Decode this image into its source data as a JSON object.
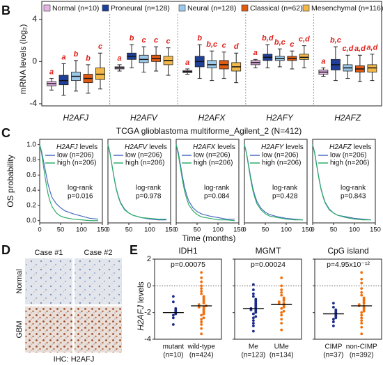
{
  "labels": [
    "B",
    "C",
    "D",
    "E"
  ],
  "ihc": {
    "columns": [
      "Case #1",
      "Case #2"
    ],
    "rows": [
      "Normal",
      "GBM"
    ],
    "caption": "IHC: H2AFJ"
  },
  "chart_data": [
    {
      "type": "box",
      "ylabel": "mRNA levels (log₂)",
      "ylim": [
        -4.2,
        5.7
      ],
      "yticks": [
        4,
        0,
        -4
      ],
      "categories": [
        "H2AFJ",
        "H2AFV",
        "H2AFX",
        "H2AFY",
        "H2AFZ"
      ],
      "series": [
        {
          "name": "Normal (n=10)",
          "color": "#e6b3e6",
          "values": [
            {
              "min": -2.7,
              "q1": -2.3,
              "median": -2.1,
              "q3": -1.9,
              "max": -1.6
            },
            {
              "min": -0.9,
              "q1": -0.7,
              "median": -0.6,
              "q3": -0.5,
              "max": -0.3
            },
            {
              "min": -1.2,
              "q1": -1.05,
              "median": -0.95,
              "q3": -0.85,
              "max": -0.7
            },
            {
              "min": -0.6,
              "q1": -0.3,
              "median": -0.1,
              "q3": 0.1,
              "max": 0.2
            },
            {
              "min": -1.4,
              "q1": -1.2,
              "median": -1.0,
              "q3": -0.8,
              "max": -0.6
            }
          ],
          "letters": [
            "a",
            "a",
            "a",
            "a",
            "a"
          ]
        },
        {
          "name": "Proneural (n=128)",
          "color": "#1f3f99",
          "values": [
            {
              "min": -3.2,
              "q1": -2.2,
              "median": -1.8,
              "q3": -1.3,
              "max": -0.2
            },
            {
              "min": -0.6,
              "q1": 0.2,
              "median": 0.5,
              "q3": 0.8,
              "max": 1.6
            },
            {
              "min": -1.6,
              "q1": -0.5,
              "median": 0.0,
              "q3": 0.5,
              "max": 1.6
            },
            {
              "min": -0.6,
              "q1": 0.1,
              "median": 0.4,
              "q3": 0.7,
              "max": 1.6
            },
            {
              "min": -1.8,
              "q1": -0.8,
              "median": -0.3,
              "q3": 0.2,
              "max": 1.4
            }
          ],
          "letters": [
            "a",
            "b",
            "b",
            "b,d",
            "b,c"
          ]
        },
        {
          "name": "Neural (n=128)",
          "color": "#9cc8ea",
          "values": [
            {
              "min": -2.8,
              "q1": -1.8,
              "median": -1.4,
              "q3": -1.0,
              "max": 0.1
            },
            {
              "min": -1.0,
              "q1": -0.1,
              "median": 0.2,
              "q3": 0.6,
              "max": 1.4
            },
            {
              "min": -1.8,
              "q1": -0.6,
              "median": -0.3,
              "q3": 0.1,
              "max": 1.0
            },
            {
              "min": -0.5,
              "q1": 0.1,
              "median": 0.3,
              "q3": 0.5,
              "max": 1.2
            },
            {
              "min": -1.6,
              "q1": -0.9,
              "median": -0.6,
              "q3": -0.3,
              "max": 0.6
            }
          ],
          "letters": [
            "b",
            "c",
            "b,c",
            "b,c",
            "c,d"
          ]
        },
        {
          "name": "Classical (n=62)",
          "color": "#e05a14",
          "values": [
            {
              "min": -3.0,
              "q1": -2.0,
              "median": -1.6,
              "q3": -1.2,
              "max": -0.3
            },
            {
              "min": -0.9,
              "q1": 0.0,
              "median": 0.3,
              "q3": 0.6,
              "max": 1.4
            },
            {
              "min": -1.6,
              "q1": -0.7,
              "median": -0.3,
              "q3": 0.1,
              "max": 0.9
            },
            {
              "min": -0.7,
              "q1": 0.1,
              "median": 0.3,
              "q3": 0.5,
              "max": 1.0
            },
            {
              "min": -1.9,
              "q1": -1.0,
              "median": -0.7,
              "q3": -0.4,
              "max": 0.6
            }
          ],
          "letters": [
            "b",
            "c",
            "c",
            "c",
            "a,d"
          ]
        },
        {
          "name": "Mesenchymal (n=116)",
          "color": "#f2b84a",
          "values": [
            {
              "min": -2.6,
              "q1": -1.7,
              "median": -1.2,
              "q3": -0.6,
              "max": 0.8
            },
            {
              "min": -1.3,
              "q1": -0.3,
              "median": 0.1,
              "q3": 0.5,
              "max": 1.3
            },
            {
              "min": -2.0,
              "q1": -0.9,
              "median": -0.5,
              "q3": -0.1,
              "max": 0.8
            },
            {
              "min": -0.6,
              "q1": 0.2,
              "median": 0.4,
              "q3": 0.7,
              "max": 1.5
            },
            {
              "min": -1.8,
              "q1": -1.0,
              "median": -0.6,
              "q3": -0.3,
              "max": 0.7
            }
          ],
          "letters": [
            "c",
            "c",
            "d",
            "c,d",
            "a,d"
          ]
        }
      ]
    },
    {
      "type": "km",
      "title": "TCGA glioblastoma multiforme_Agilent_2 (N=412)",
      "xlabel": "Time (months)",
      "ylabel": "OS probability",
      "xlim": [
        0,
        150
      ],
      "xticks": [
        0,
        50,
        100,
        150
      ],
      "ylim": [
        -0.03,
        1.07
      ],
      "yticks": [
        {
          "value": 0,
          "label": "0.0"
        },
        0.2,
        0.4,
        0.6,
        0.8,
        {
          "value": 1,
          "label": "1.0"
        }
      ],
      "levels_label": "levels",
      "stat_label": "log-rank",
      "x": [
        0,
        5,
        10,
        15,
        20,
        25,
        30,
        40,
        50,
        60,
        80,
        100,
        120,
        140
      ],
      "panels": [
        {
          "gene": "H2AFJ",
          "p_label": "p=0.016",
          "series": [
            {
              "name": "low (n=206)",
              "color": "#4a6cc0",
              "values": [
                1,
                0.9,
                0.76,
                0.62,
                0.48,
                0.38,
                0.3,
                0.22,
                0.17,
                0.13,
                0.09,
                0.06,
                0.03,
                0.02
              ]
            },
            {
              "name": "high (n=206)",
              "color": "#2fae6a",
              "values": [
                1,
                0.87,
                0.68,
                0.5,
                0.35,
                0.25,
                0.18,
                0.1,
                0.06,
                0.04,
                0.02,
                0.01,
                0,
                0
              ]
            }
          ]
        },
        {
          "gene": "H2AFV",
          "p_label": "p=0.978",
          "series": [
            {
              "name": "low (n=206)",
              "color": "#4a6cc0",
              "values": [
                1,
                0.89,
                0.72,
                0.56,
                0.42,
                0.32,
                0.24,
                0.15,
                0.1,
                0.07,
                0.04,
                0.02,
                0.01,
                0.01
              ]
            },
            {
              "name": "high (n=206)",
              "color": "#2fae6a",
              "values": [
                1,
                0.88,
                0.72,
                0.55,
                0.41,
                0.31,
                0.23,
                0.14,
                0.1,
                0.07,
                0.04,
                0.03,
                0.02,
                0.02
              ]
            }
          ]
        },
        {
          "gene": "H2AFX",
          "p_label": "p=0.084",
          "series": [
            {
              "name": "low (n=206)",
              "color": "#4a6cc0",
              "values": [
                1,
                0.9,
                0.74,
                0.58,
                0.44,
                0.34,
                0.26,
                0.17,
                0.12,
                0.09,
                0.06,
                0.04,
                0.02,
                0.02
              ]
            },
            {
              "name": "high (n=206)",
              "color": "#2fae6a",
              "values": [
                1,
                0.87,
                0.7,
                0.53,
                0.39,
                0.29,
                0.21,
                0.13,
                0.08,
                0.05,
                0.03,
                0.01,
                0.01,
                0
              ]
            }
          ]
        },
        {
          "gene": "H2AFY",
          "p_label": "p=0.428",
          "series": [
            {
              "name": "low (n=206)",
              "color": "#4a6cc0",
              "values": [
                1,
                0.89,
                0.73,
                0.57,
                0.43,
                0.33,
                0.25,
                0.16,
                0.11,
                0.08,
                0.05,
                0.03,
                0.02,
                0.01
              ]
            },
            {
              "name": "high (n=206)",
              "color": "#2fae6a",
              "values": [
                1,
                0.88,
                0.71,
                0.54,
                0.4,
                0.3,
                0.22,
                0.14,
                0.09,
                0.06,
                0.04,
                0.02,
                0.01,
                0.01
              ]
            }
          ]
        },
        {
          "gene": "H2AFZ",
          "p_label": "p=0.843",
          "series": [
            {
              "name": "low (n=206)",
              "color": "#4a6cc0",
              "values": [
                1,
                0.89,
                0.72,
                0.56,
                0.42,
                0.32,
                0.24,
                0.15,
                0.1,
                0.07,
                0.05,
                0.03,
                0.02,
                0.01
              ]
            },
            {
              "name": "high (n=206)",
              "color": "#2fae6a",
              "values": [
                1,
                0.88,
                0.71,
                0.55,
                0.41,
                0.31,
                0.23,
                0.14,
                0.1,
                0.07,
                0.04,
                0.02,
                0.01,
                0.01
              ]
            }
          ]
        }
      ]
    },
    {
      "type": "dot",
      "ylabel_gene": "H2AFJ",
      "ylabel_suffix": "levels",
      "ylim": [
        -4,
        2
      ],
      "yticks": [
        2,
        0,
        -2,
        -4
      ],
      "hline": 0,
      "panels": [
        {
          "title": "IDH1",
          "p_label": "p=0.00075",
          "groups": [
            {
              "name": "mutant",
              "n_label": "(n=10)",
              "color": "#1c2a8c",
              "mean": -2.0,
              "values": [
                -2.9,
                -2.4,
                -2.2,
                -2.1,
                -2.0,
                -1.9,
                -1.8,
                -1.7,
                -1.2,
                -0.8
              ]
            },
            {
              "name": "wild-type",
              "n_label": "(n=424)",
              "color": "#f07010",
              "mean": -1.5,
              "values": [
                -3.6,
                -3.2,
                -2.9,
                -2.7,
                -2.5,
                -2.4,
                -2.2,
                -2.1,
                -2.0,
                -1.9,
                -1.8,
                -1.7,
                -1.6,
                -1.6,
                -1.5,
                -1.5,
                -1.4,
                -1.3,
                -1.2,
                -1.1,
                -1.0,
                -0.9,
                -0.8,
                -0.6,
                -0.4,
                -0.2,
                0.0,
                0.3,
                0.6,
                1.0
              ]
            }
          ]
        },
        {
          "title": "MGMT",
          "p_label": "p=0.00024",
          "groups": [
            {
              "name": "Me",
              "n_label": "(n=123)",
              "color": "#1c2a8c",
              "mean": -1.7,
              "values": [
                -3.4,
                -3.0,
                -2.8,
                -2.6,
                -2.4,
                -2.3,
                -2.1,
                -2.0,
                -1.9,
                -1.8,
                -1.8,
                -1.7,
                -1.6,
                -1.5,
                -1.4,
                -1.3,
                -1.2,
                -1.1,
                -1.0,
                -0.8,
                -0.6,
                -0.3,
                0.1
              ]
            },
            {
              "name": "UMe",
              "n_label": "(n=134)",
              "color": "#f07010",
              "mean": -1.4,
              "values": [
                -3.3,
                -2.8,
                -2.5,
                -2.2,
                -2.0,
                -1.9,
                -1.7,
                -1.6,
                -1.5,
                -1.4,
                -1.3,
                -1.3,
                -1.2,
                -1.1,
                -1.0,
                -0.9,
                -0.7,
                -0.5,
                -0.3,
                0.0,
                0.6
              ]
            }
          ]
        },
        {
          "title": "CpG island",
          "p_label": "p=4.95x10⁻¹²",
          "groups": [
            {
              "name": "CIMP",
              "n_label": "(n=37)",
              "color": "#1c2a8c",
              "mean": -2.1,
              "values": [
                -3.0,
                -2.7,
                -2.5,
                -2.4,
                -2.3,
                -2.2,
                -2.1,
                -2.0,
                -1.9,
                -1.8,
                -1.6,
                -1.3
              ]
            },
            {
              "name": "non-CIMP",
              "n_label": "(n=392)",
              "color": "#f07010",
              "mean": -1.5,
              "values": [
                -3.6,
                -3.1,
                -2.8,
                -2.6,
                -2.4,
                -2.2,
                -2.0,
                -1.9,
                -1.8,
                -1.7,
                -1.6,
                -1.5,
                -1.5,
                -1.4,
                -1.3,
                -1.2,
                -1.1,
                -1.0,
                -0.9,
                -0.7,
                -0.5,
                -0.2,
                0.2,
                0.5,
                1.0
              ]
            }
          ]
        }
      ]
    }
  ]
}
